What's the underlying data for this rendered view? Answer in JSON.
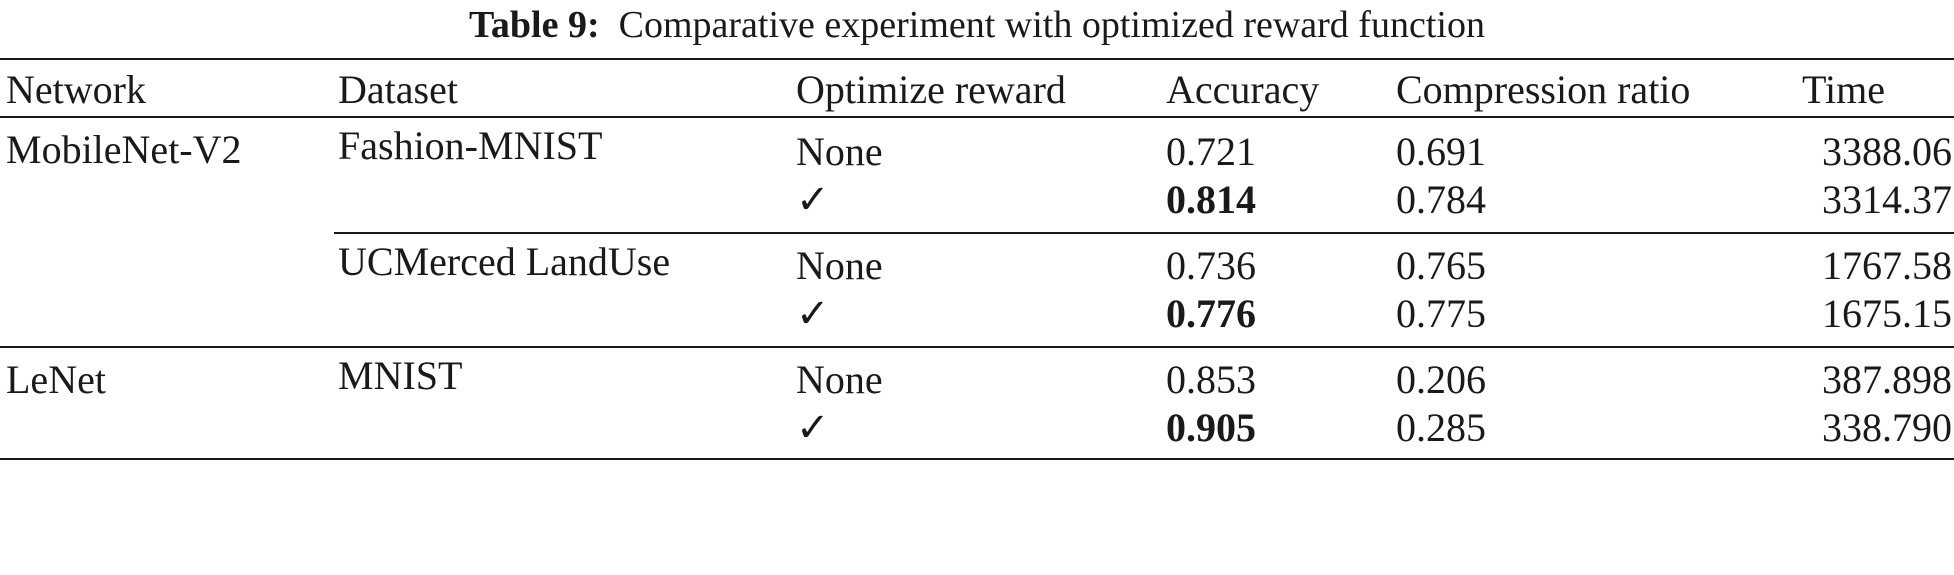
{
  "caption": {
    "label": "Table 9:",
    "text": "Comparative experiment with optimized reward function"
  },
  "headers": [
    "Network",
    "Dataset",
    "Optimize reward",
    "Accuracy",
    "Compression ratio",
    "Time"
  ],
  "rows": [
    {
      "network": "MobileNet-V2",
      "dataset": "Fashion-MNIST",
      "optimize": "None",
      "accuracy": "0.721",
      "accuracy_bold": false,
      "compression": "0.691",
      "time": "3388.06"
    },
    {
      "network": "",
      "dataset": "",
      "optimize": "✓",
      "accuracy": "0.814",
      "accuracy_bold": true,
      "compression": "0.784",
      "time": "3314.37"
    },
    {
      "network": "",
      "dataset": "UCMerced LandUse",
      "optimize": "None",
      "accuracy": "0.736",
      "accuracy_bold": false,
      "compression": "0.765",
      "time": "1767.58"
    },
    {
      "network": "",
      "dataset": "",
      "optimize": "✓",
      "accuracy": "0.776",
      "accuracy_bold": true,
      "compression": "0.775",
      "time": "1675.15"
    },
    {
      "network": "LeNet",
      "dataset": "MNIST",
      "optimize": "None",
      "accuracy": "0.853",
      "accuracy_bold": false,
      "compression": "0.206",
      "time": "387.898"
    },
    {
      "network": "",
      "dataset": "",
      "optimize": "✓",
      "accuracy": "0.905",
      "accuracy_bold": true,
      "compression": "0.285",
      "time": "338.790"
    }
  ]
}
